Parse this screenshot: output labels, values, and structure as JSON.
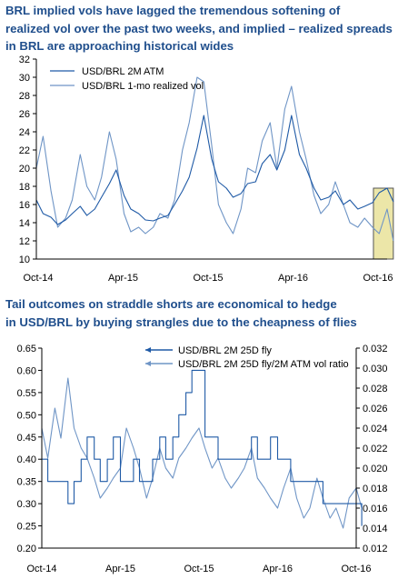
{
  "titles": {
    "top_line1": "BRL implied vols have lagged the tremendous softening of",
    "top_line2": "realized vol over the past two weeks, and implied – realized spreads",
    "top_line3": "in BRL are approaching historical wides",
    "bottom_line1": "Tail outcomes on straddle shorts are economical to hedge",
    "bottom_line2": "in USD/BRL by buying strangles due to the cheapness of flies"
  },
  "colors": {
    "title": "#1f4e8c",
    "series_dark": "#1f5aa6",
    "series_light": "#6f95c6",
    "highlight_fill": "#ece6a8",
    "highlight_border": "#555555"
  },
  "chart_data": [
    {
      "type": "line",
      "title": "BRL implied vols have lagged the tremendous softening of realized vol over the past two weeks, and implied – realized spreads in BRL are approaching historical wides",
      "x_tick_labels": [
        "Oct-14",
        "Apr-15",
        "Oct-15",
        "Apr-16",
        "Oct-16"
      ],
      "x_range": [
        "2014-10",
        "2016-10"
      ],
      "ylim": [
        10,
        32
      ],
      "y_ticks": [
        10,
        12,
        14,
        16,
        18,
        20,
        22,
        24,
        26,
        28,
        30,
        32
      ],
      "legend_position": "top-left",
      "highlight": {
        "x_from": "2016-09-03",
        "x_to": "2016-10-14",
        "y_from": 10,
        "y_to": 17.8
      },
      "series": [
        {
          "name": "USD/BRL 2M ATM",
          "style": "dark",
          "dates": [
            "2014-10-01",
            "2014-10-15",
            "2014-11-01",
            "2014-11-15",
            "2014-12-01",
            "2014-12-15",
            "2015-01-01",
            "2015-01-15",
            "2015-02-01",
            "2015-02-15",
            "2015-03-01",
            "2015-03-15",
            "2015-04-01",
            "2015-04-15",
            "2015-05-01",
            "2015-05-15",
            "2015-06-01",
            "2015-06-15",
            "2015-07-01",
            "2015-07-15",
            "2015-08-01",
            "2015-08-15",
            "2015-09-01",
            "2015-09-15",
            "2015-10-01",
            "2015-10-15",
            "2015-11-01",
            "2015-11-15",
            "2015-12-01",
            "2015-12-15",
            "2016-01-01",
            "2016-01-15",
            "2016-02-01",
            "2016-02-15",
            "2016-03-01",
            "2016-03-15",
            "2016-04-01",
            "2016-04-15",
            "2016-05-01",
            "2016-05-15",
            "2016-06-01",
            "2016-06-15",
            "2016-07-01",
            "2016-07-15",
            "2016-08-01",
            "2016-08-15",
            "2016-09-01",
            "2016-09-15",
            "2016-10-01",
            "2016-10-14"
          ],
          "values": [
            16.5,
            15.0,
            14.6,
            13.8,
            14.3,
            15.0,
            15.8,
            14.8,
            15.5,
            16.8,
            18.3,
            19.8,
            17.0,
            15.5,
            15.0,
            14.3,
            14.2,
            14.5,
            14.8,
            16.0,
            17.5,
            19.0,
            22.2,
            25.8,
            21.0,
            18.5,
            17.8,
            16.8,
            17.2,
            18.3,
            18.5,
            20.5,
            21.5,
            19.8,
            22.0,
            25.8,
            21.5,
            20.0,
            17.8,
            16.5,
            16.8,
            17.5,
            16.0,
            16.5,
            15.5,
            15.8,
            16.2,
            17.3,
            17.8,
            16.3
          ]
        },
        {
          "name": "USD/BRL 1-mo realized vol",
          "style": "light",
          "dates": [
            "2014-10-01",
            "2014-10-15",
            "2014-11-01",
            "2014-11-15",
            "2014-12-01",
            "2014-12-15",
            "2015-01-01",
            "2015-01-15",
            "2015-02-01",
            "2015-02-15",
            "2015-03-01",
            "2015-03-15",
            "2015-04-01",
            "2015-04-15",
            "2015-05-01",
            "2015-05-15",
            "2015-06-01",
            "2015-06-15",
            "2015-07-01",
            "2015-07-15",
            "2015-08-01",
            "2015-08-15",
            "2015-09-01",
            "2015-09-15",
            "2015-10-01",
            "2015-10-15",
            "2015-11-01",
            "2015-11-15",
            "2015-12-01",
            "2015-12-15",
            "2016-01-01",
            "2016-01-15",
            "2016-02-01",
            "2016-02-15",
            "2016-03-01",
            "2016-03-15",
            "2016-04-01",
            "2016-04-15",
            "2016-05-01",
            "2016-05-15",
            "2016-06-01",
            "2016-06-15",
            "2016-07-01",
            "2016-07-15",
            "2016-08-01",
            "2016-08-15",
            "2016-09-01",
            "2016-09-15",
            "2016-10-01",
            "2016-10-14"
          ],
          "values": [
            20.0,
            23.5,
            17.5,
            13.5,
            14.5,
            16.5,
            21.5,
            18.0,
            16.5,
            19.0,
            24.0,
            21.0,
            15.0,
            13.0,
            13.5,
            12.8,
            13.5,
            15.0,
            14.5,
            16.5,
            22.0,
            25.0,
            30.0,
            29.5,
            22.5,
            16.0,
            14.0,
            12.8,
            15.5,
            20.0,
            19.5,
            23.0,
            25.0,
            20.0,
            26.5,
            29.0,
            24.0,
            21.0,
            17.0,
            15.0,
            16.0,
            18.5,
            16.0,
            14.0,
            13.5,
            14.5,
            13.5,
            12.8,
            15.5,
            12.0
          ]
        }
      ]
    },
    {
      "type": "line",
      "title": "Tail outcomes on straddle shorts are economical to hedge in USD/BRL by buying strangles due to the cheapness of flies",
      "x_tick_labels": [
        "Oct-14",
        "Apr-15",
        "Oct-15",
        "Apr-16",
        "Oct-16"
      ],
      "x_range": [
        "2014-10",
        "2016-10"
      ],
      "ylim_left": [
        0.2,
        0.65
      ],
      "y_ticks_left": [
        "0.20",
        "0.25",
        "0.30",
        "0.35",
        "0.40",
        "0.45",
        "0.50",
        "0.55",
        "0.60",
        "0.65"
      ],
      "ylim_right": [
        0.012,
        0.032
      ],
      "y_ticks_right": [
        "0.012",
        "0.014",
        "0.016",
        "0.018",
        "0.020",
        "0.022",
        "0.024",
        "0.026",
        "0.028",
        "0.030",
        "0.032"
      ],
      "legend_position": "top-center",
      "series": [
        {
          "name": "USD/BRL 2M 25D fly",
          "axis": "left",
          "style": "dark",
          "dates": [
            "2014-10-01",
            "2014-10-15",
            "2014-11-01",
            "2014-11-15",
            "2014-12-01",
            "2014-12-15",
            "2015-01-01",
            "2015-01-15",
            "2015-02-01",
            "2015-02-15",
            "2015-03-01",
            "2015-03-15",
            "2015-04-01",
            "2015-04-15",
            "2015-05-01",
            "2015-05-15",
            "2015-06-01",
            "2015-06-15",
            "2015-07-01",
            "2015-07-15",
            "2015-08-01",
            "2015-08-15",
            "2015-09-01",
            "2015-09-15",
            "2015-10-01",
            "2015-10-15",
            "2015-11-01",
            "2015-11-15",
            "2015-12-01",
            "2015-12-15",
            "2016-01-01",
            "2016-01-15",
            "2016-02-01",
            "2016-02-15",
            "2016-03-01",
            "2016-03-15",
            "2016-04-01",
            "2016-04-15",
            "2016-05-01",
            "2016-05-15",
            "2016-06-01",
            "2016-06-15",
            "2016-07-01",
            "2016-07-15",
            "2016-08-01",
            "2016-08-15",
            "2016-09-01",
            "2016-09-15",
            "2016-10-01",
            "2016-10-14"
          ],
          "values": [
            0.4,
            0.35,
            0.35,
            0.35,
            0.3,
            0.35,
            0.4,
            0.45,
            0.4,
            0.35,
            0.4,
            0.45,
            0.35,
            0.35,
            0.4,
            0.35,
            0.35,
            0.4,
            0.45,
            0.4,
            0.45,
            0.5,
            0.55,
            0.6,
            0.6,
            0.45,
            0.45,
            0.4,
            0.4,
            0.4,
            0.4,
            0.4,
            0.45,
            0.4,
            0.4,
            0.45,
            0.4,
            0.4,
            0.35,
            0.35,
            0.35,
            0.35,
            0.35,
            0.3,
            0.3,
            0.3,
            0.3,
            0.3,
            0.3,
            0.25
          ]
        },
        {
          "name": "USD/BRL 2M 25D fly/2M ATM vol ratio",
          "axis": "right",
          "style": "light",
          "dates": [
            "2014-10-01",
            "2014-10-15",
            "2014-11-01",
            "2014-11-15",
            "2014-12-01",
            "2014-12-15",
            "2015-01-01",
            "2015-01-15",
            "2015-02-01",
            "2015-02-15",
            "2015-03-01",
            "2015-03-15",
            "2015-04-01",
            "2015-04-15",
            "2015-05-01",
            "2015-05-15",
            "2015-06-01",
            "2015-06-15",
            "2015-07-01",
            "2015-07-15",
            "2015-08-01",
            "2015-08-15",
            "2015-09-01",
            "2015-09-15",
            "2015-10-01",
            "2015-10-15",
            "2015-11-01",
            "2015-11-15",
            "2015-12-01",
            "2015-12-15",
            "2016-01-01",
            "2016-01-15",
            "2016-02-01",
            "2016-02-15",
            "2016-03-01",
            "2016-03-15",
            "2016-04-01",
            "2016-04-15",
            "2016-05-01",
            "2016-05-15",
            "2016-06-01",
            "2016-06-15",
            "2016-07-01",
            "2016-07-15",
            "2016-08-01",
            "2016-08-15",
            "2016-09-01",
            "2016-09-15",
            "2016-10-01",
            "2016-10-14"
          ],
          "values": [
            0.024,
            0.021,
            0.026,
            0.023,
            0.029,
            0.024,
            0.022,
            0.021,
            0.019,
            0.017,
            0.018,
            0.019,
            0.02,
            0.024,
            0.022,
            0.02,
            0.017,
            0.019,
            0.022,
            0.02,
            0.019,
            0.021,
            0.022,
            0.023,
            0.024,
            0.022,
            0.02,
            0.021,
            0.019,
            0.018,
            0.019,
            0.02,
            0.022,
            0.019,
            0.018,
            0.017,
            0.016,
            0.018,
            0.02,
            0.017,
            0.015,
            0.016,
            0.019,
            0.017,
            0.015,
            0.016,
            0.014,
            0.017,
            0.018,
            0.016
          ]
        }
      ]
    }
  ]
}
